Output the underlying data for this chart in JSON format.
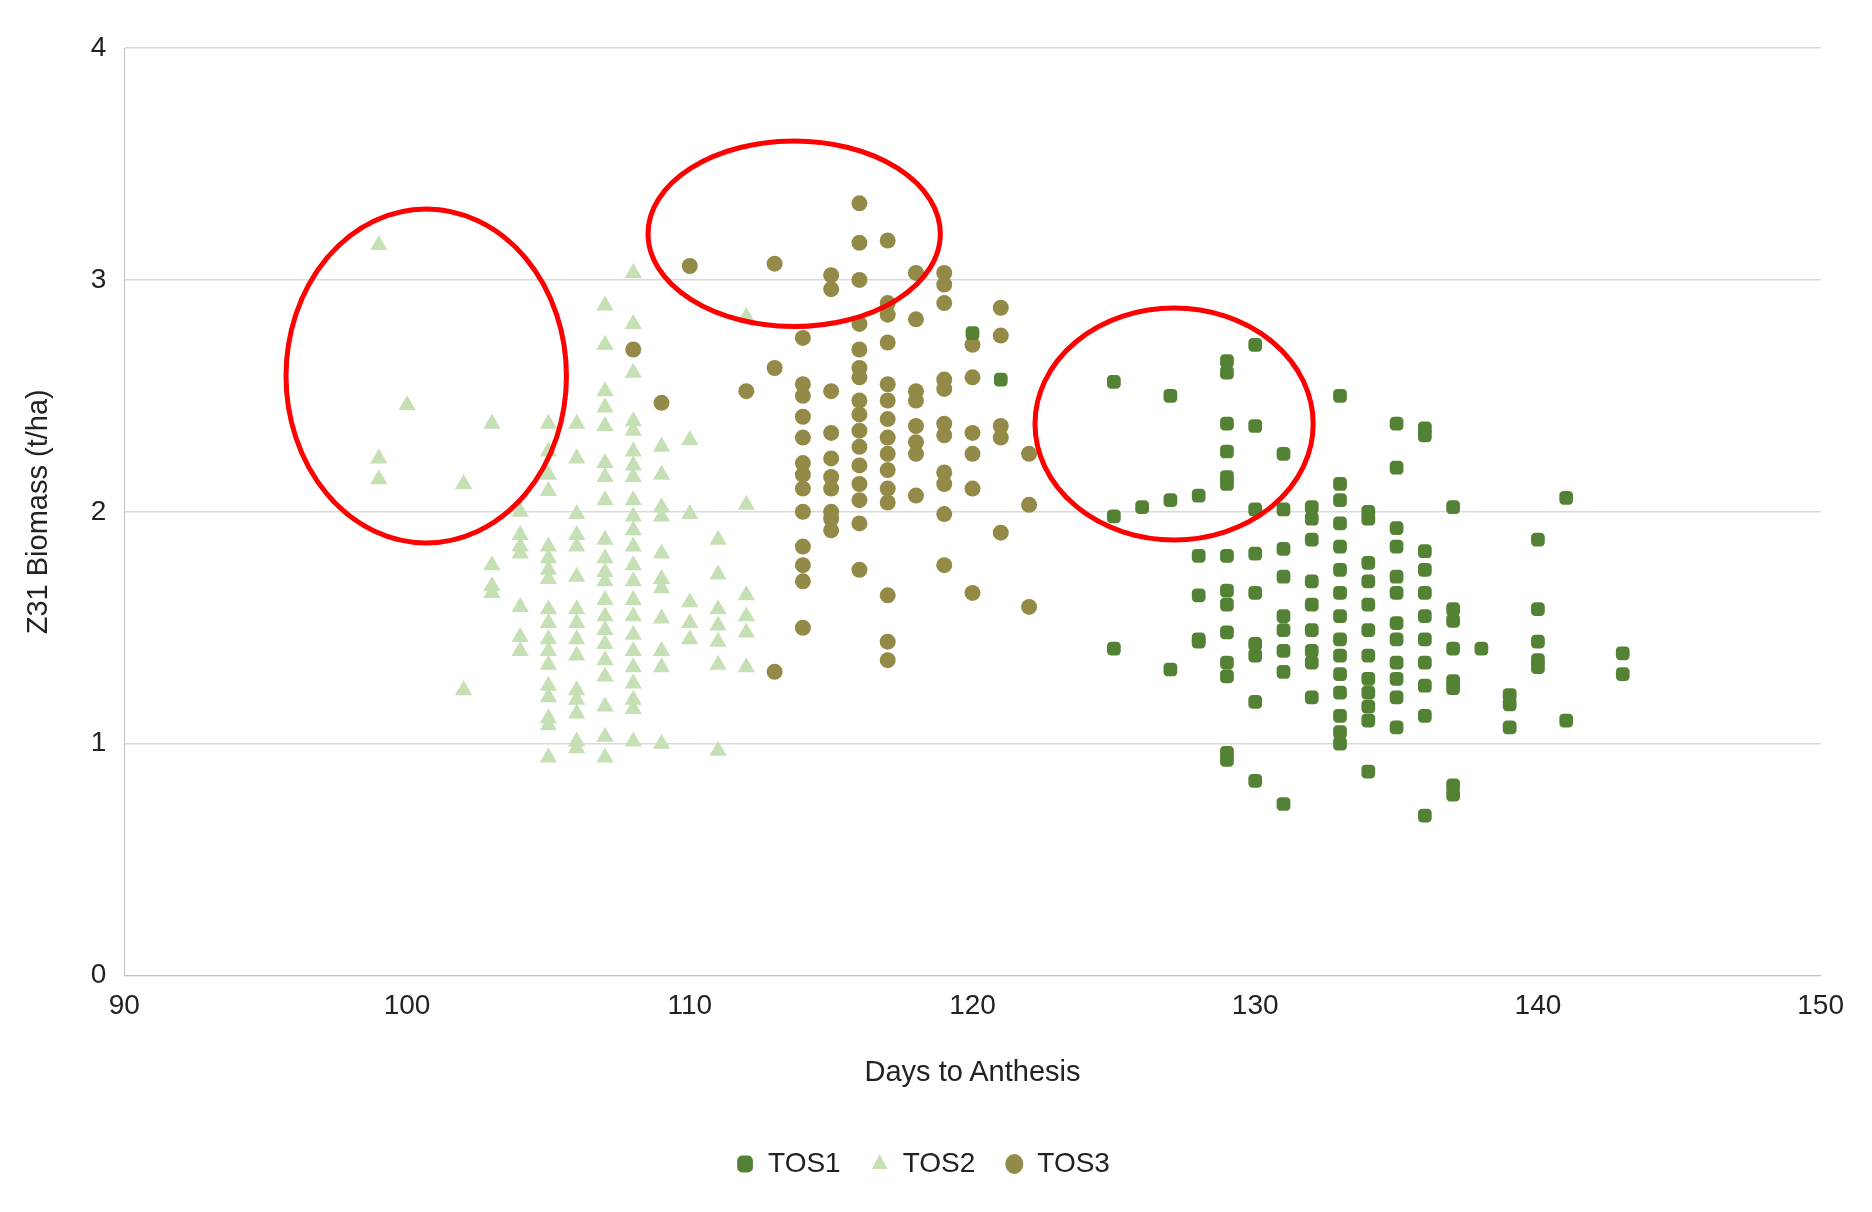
{
  "chart_data": {
    "type": "scatter",
    "xlabel": "Days to Anthesis",
    "ylabel": "Z31 Biomass (t/ha)",
    "xlim": [
      90,
      150
    ],
    "xticks": [
      90,
      100,
      110,
      120,
      130,
      140,
      150
    ],
    "ylim": [
      0,
      4
    ],
    "yticks": [
      0,
      1,
      2,
      3,
      4
    ],
    "grid": "y",
    "legend": "bottom",
    "series": [
      {
        "name": "TOS1",
        "color": "#548235",
        "marker": "square",
        "x": [
          120,
          121,
          125,
          125,
          125,
          126,
          127,
          127,
          127,
          128,
          128,
          128,
          128,
          128,
          129,
          129,
          129,
          129,
          129,
          129,
          129,
          129,
          129,
          129,
          129,
          129,
          129,
          129,
          130,
          130,
          130,
          130,
          130,
          130,
          130,
          130,
          130,
          131,
          131,
          131,
          131,
          131,
          131,
          131,
          131,
          131,
          132,
          132,
          132,
          132,
          132,
          132,
          132,
          132,
          132,
          133,
          133,
          133,
          133,
          133,
          133,
          133,
          133,
          133,
          133,
          133,
          133,
          133,
          133,
          133,
          134,
          134,
          134,
          134,
          134,
          134,
          134,
          134,
          134,
          134,
          134,
          134,
          135,
          135,
          135,
          135,
          135,
          135,
          135,
          135,
          135,
          135,
          135,
          135,
          136,
          136,
          136,
          136,
          136,
          136,
          136,
          136,
          136,
          136,
          136,
          137,
          137,
          137,
          137,
          137,
          137,
          137,
          137,
          138,
          139,
          139,
          139,
          140,
          140,
          140,
          140,
          140,
          141,
          141,
          143,
          143
        ],
        "values": [
          2.77,
          2.57,
          2.56,
          1.98,
          1.41,
          2.02,
          2.5,
          2.05,
          1.32,
          2.07,
          1.81,
          1.64,
          1.45,
          1.44,
          2.65,
          2.6,
          2.38,
          2.26,
          2.15,
          2.12,
          1.81,
          1.66,
          1.6,
          1.48,
          1.35,
          1.29,
          0.96,
          0.93,
          2.72,
          2.37,
          2.01,
          1.82,
          1.65,
          1.43,
          1.38,
          1.18,
          0.84,
          2.25,
          2.01,
          1.84,
          1.72,
          1.55,
          1.49,
          1.4,
          1.31,
          0.74,
          2.02,
          1.97,
          1.88,
          1.7,
          1.6,
          1.49,
          1.4,
          1.35,
          1.2,
          2.5,
          2.12,
          2.05,
          1.95,
          1.85,
          1.75,
          1.65,
          1.55,
          1.45,
          1.38,
          1.3,
          1.22,
          1.12,
          1.05,
          1.0,
          2.0,
          1.97,
          1.78,
          1.7,
          1.6,
          1.49,
          1.38,
          1.28,
          1.22,
          1.16,
          1.1,
          0.88,
          2.38,
          2.19,
          1.93,
          1.85,
          1.72,
          1.65,
          1.52,
          1.45,
          1.35,
          1.28,
          1.2,
          1.07,
          2.36,
          2.33,
          1.83,
          1.75,
          1.65,
          1.55,
          1.45,
          1.35,
          1.25,
          1.12,
          0.69,
          2.02,
          1.58,
          1.53,
          1.41,
          1.27,
          1.24,
          0.82,
          0.78,
          1.41,
          1.21,
          1.17,
          1.07,
          1.88,
          1.58,
          1.44,
          1.36,
          1.33,
          2.06,
          1.1,
          1.39,
          1.3
        ]
      },
      {
        "name": "TOS2",
        "color": "#c5e0b4",
        "marker": "triangle",
        "x": [
          99,
          99,
          99,
          100,
          102,
          102,
          103,
          103,
          103,
          103,
          104,
          104,
          104,
          104,
          104,
          104,
          104,
          105,
          105,
          105,
          105,
          105,
          105,
          105,
          105,
          105,
          105,
          105,
          105,
          105,
          105,
          105,
          105,
          105,
          105,
          106,
          106,
          106,
          106,
          106,
          106,
          106,
          106,
          106,
          106,
          106,
          106,
          106,
          106,
          106,
          107,
          107,
          107,
          107,
          107,
          107,
          107,
          107,
          107,
          107,
          107,
          107,
          107,
          107,
          107,
          107,
          107,
          107,
          107,
          107,
          107,
          108,
          108,
          108,
          108,
          108,
          108,
          108,
          108,
          108,
          108,
          108,
          108,
          108,
          108,
          108,
          108,
          108,
          108,
          108,
          108,
          108,
          108,
          108,
          109,
          109,
          109,
          109,
          109,
          109,
          109,
          109,
          109,
          109,
          109,
          110,
          110,
          110,
          110,
          110,
          111,
          111,
          111,
          111,
          111,
          111,
          111,
          112,
          112,
          112,
          112,
          112,
          112
        ],
        "values": [
          3.15,
          2.23,
          2.14,
          2.46,
          2.12,
          1.23,
          2.38,
          1.77,
          1.68,
          1.65,
          2.0,
          1.9,
          1.85,
          1.82,
          1.59,
          1.46,
          1.4,
          2.38,
          2.26,
          2.16,
          2.09,
          1.85,
          1.8,
          1.75,
          1.71,
          1.58,
          1.52,
          1.45,
          1.4,
          1.34,
          1.25,
          1.2,
          1.11,
          1.08,
          0.94,
          2.38,
          2.23,
          1.99,
          1.9,
          1.85,
          1.72,
          1.58,
          1.52,
          1.45,
          1.38,
          1.23,
          1.19,
          1.13,
          1.01,
          0.98,
          2.89,
          2.72,
          2.52,
          2.45,
          2.37,
          2.21,
          2.15,
          2.05,
          1.88,
          1.8,
          1.74,
          1.7,
          1.62,
          1.55,
          1.49,
          1.43,
          1.36,
          1.29,
          1.16,
          1.03,
          0.94,
          3.03,
          2.81,
          2.6,
          2.39,
          2.35,
          2.26,
          2.2,
          2.15,
          2.05,
          1.98,
          1.92,
          1.85,
          1.77,
          1.7,
          1.62,
          1.55,
          1.47,
          1.4,
          1.33,
          1.26,
          1.19,
          1.15,
          1.01,
          2.28,
          2.16,
          2.02,
          1.98,
          1.82,
          1.71,
          1.67,
          1.54,
          1.4,
          1.33,
          1.0,
          2.31,
          1.99,
          1.61,
          1.52,
          1.45,
          1.88,
          1.73,
          1.58,
          1.51,
          1.44,
          1.34,
          0.97,
          2.84,
          2.03,
          1.64,
          1.55,
          1.48,
          1.33
        ]
      },
      {
        "name": "TOS3",
        "color": "#948a47",
        "marker": "circle",
        "x": [
          108,
          109,
          110,
          112,
          113,
          113,
          113,
          114,
          114,
          114,
          114,
          114,
          114,
          114,
          114,
          114,
          114,
          114,
          114,
          114,
          115,
          115,
          115,
          115,
          115,
          115,
          115,
          115,
          115,
          115,
          116,
          116,
          116,
          116,
          116,
          116,
          116,
          116,
          116,
          116,
          116,
          116,
          116,
          116,
          116,
          116,
          117,
          117,
          117,
          117,
          117,
          117,
          117,
          117,
          117,
          117,
          117,
          117,
          117,
          117,
          117,
          118,
          118,
          118,
          118,
          118,
          118,
          118,
          118,
          119,
          119,
          119,
          119,
          119,
          119,
          119,
          119,
          119,
          119,
          119,
          120,
          120,
          120,
          120,
          120,
          120,
          121,
          121,
          121,
          121,
          121,
          122,
          122,
          122
        ],
        "values": [
          2.7,
          2.47,
          3.06,
          2.52,
          3.07,
          2.62,
          1.31,
          2.75,
          2.55,
          2.5,
          2.41,
          2.32,
          2.21,
          2.16,
          2.1,
          2.0,
          1.85,
          1.77,
          1.7,
          1.5,
          3.02,
          2.96,
          2.52,
          2.34,
          2.23,
          2.15,
          2.1,
          2.0,
          1.97,
          1.92,
          3.33,
          3.16,
          3.0,
          2.81,
          2.7,
          2.62,
          2.58,
          2.48,
          2.42,
          2.35,
          2.28,
          2.2,
          2.12,
          2.05,
          1.95,
          1.75,
          3.17,
          2.9,
          2.85,
          2.73,
          2.55,
          2.48,
          2.4,
          2.32,
          2.25,
          2.18,
          2.1,
          2.04,
          1.64,
          1.44,
          1.36,
          3.03,
          2.83,
          2.52,
          2.48,
          2.37,
          2.3,
          2.25,
          2.07,
          3.03,
          2.98,
          2.9,
          2.57,
          2.53,
          2.38,
          2.33,
          2.17,
          2.12,
          1.99,
          1.77,
          2.72,
          2.58,
          2.34,
          2.25,
          2.1,
          1.65,
          2.88,
          2.76,
          2.37,
          2.32,
          1.91,
          2.25,
          2.03,
          1.59
        ]
      }
    ]
  }
}
